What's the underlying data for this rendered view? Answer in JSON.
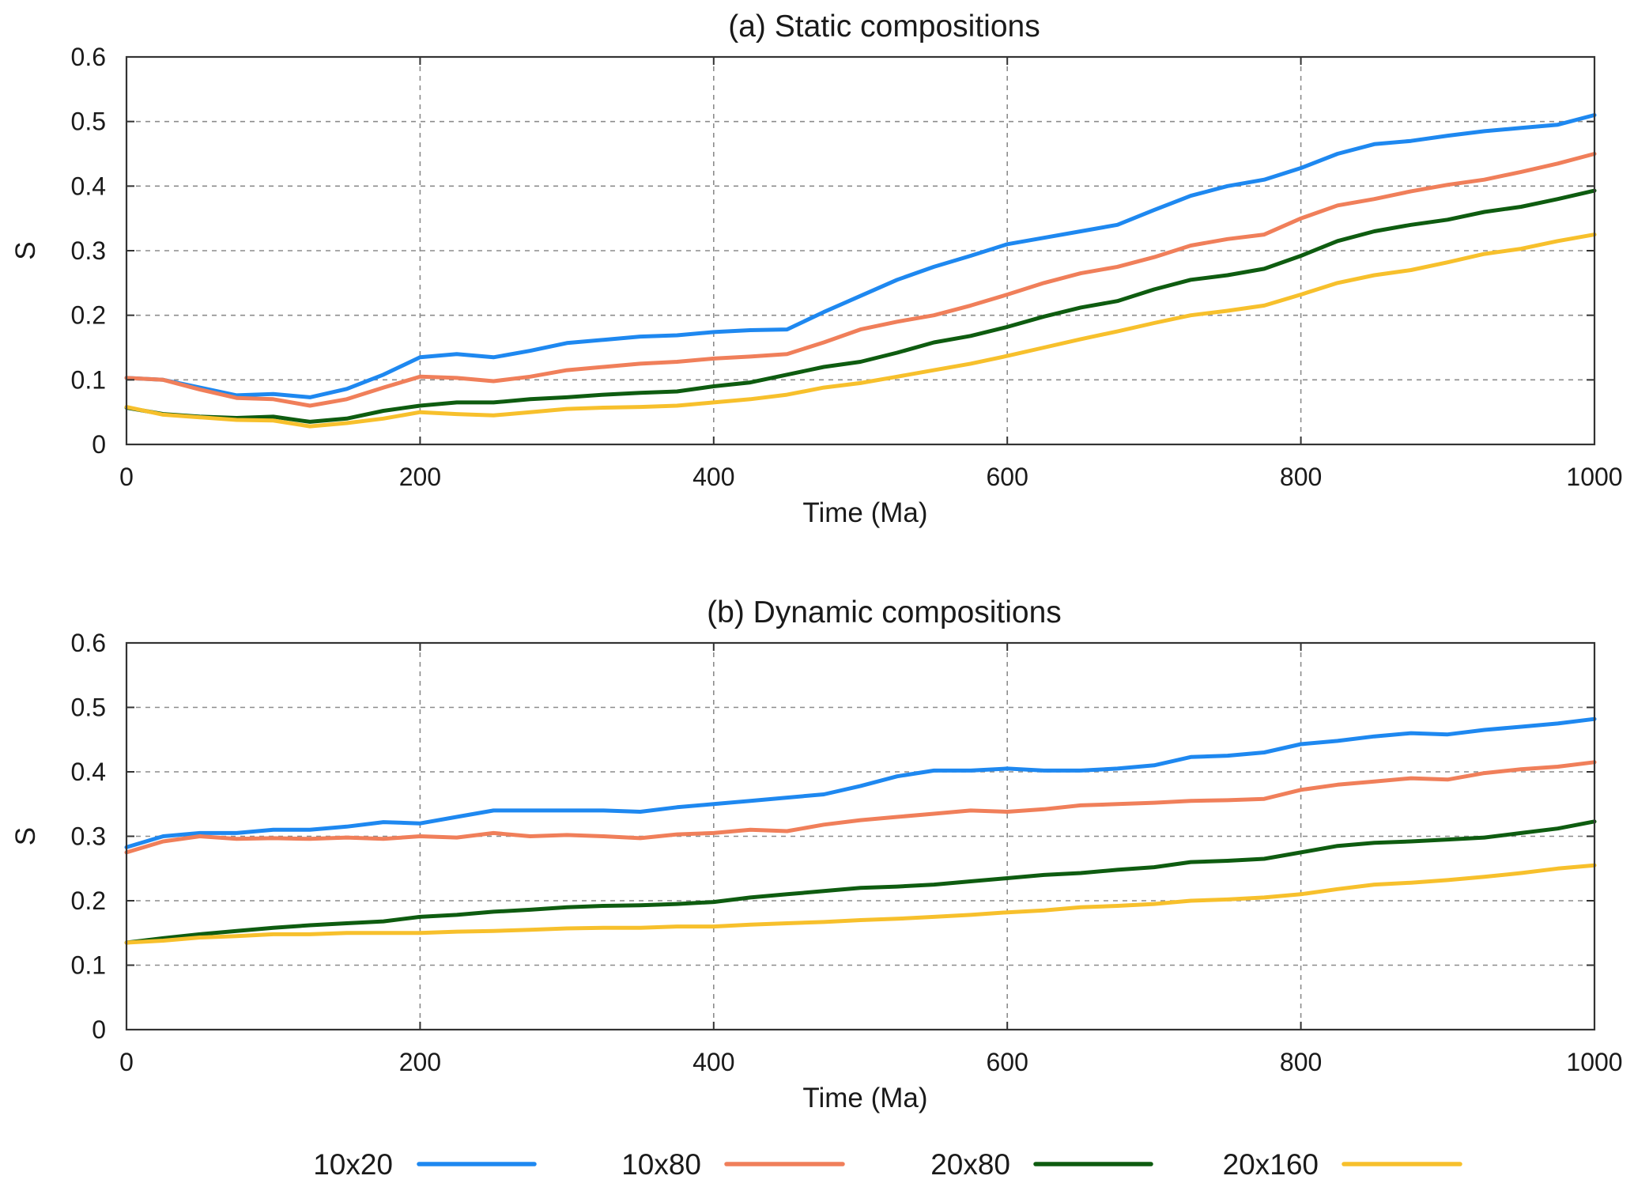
{
  "legend": {
    "position": "bottom",
    "items": [
      {
        "label": "10x20",
        "color": "#1e88f0"
      },
      {
        "label": "10x80",
        "color": "#f07f5a"
      },
      {
        "label": "20x80",
        "color": "#0e5c10"
      },
      {
        "label": "20x160",
        "color": "#f7c02c"
      }
    ]
  },
  "chart_data": [
    {
      "type": "line",
      "title": "(a) Static compositions",
      "xlabel": "Time (Ma)",
      "ylabel": "S",
      "xlim": [
        0,
        1000
      ],
      "ylim": [
        0,
        0.6
      ],
      "xticks": [
        0,
        200,
        400,
        600,
        800,
        1000
      ],
      "yticks": [
        0,
        0.1,
        0.2,
        0.3,
        0.4,
        0.5,
        0.6
      ],
      "grid": true,
      "series": [
        {
          "name": "10x20",
          "color": "#1e88f0",
          "x": [
            0,
            25,
            50,
            75,
            100,
            125,
            150,
            175,
            200,
            225,
            250,
            275,
            300,
            325,
            350,
            375,
            400,
            425,
            450,
            475,
            500,
            525,
            550,
            575,
            600,
            625,
            650,
            675,
            700,
            725,
            750,
            775,
            800,
            825,
            850,
            875,
            900,
            925,
            950,
            975,
            1000
          ],
          "y": [
            0.103,
            0.1,
            0.088,
            0.076,
            0.078,
            0.073,
            0.086,
            0.108,
            0.135,
            0.14,
            0.135,
            0.145,
            0.157,
            0.162,
            0.167,
            0.169,
            0.174,
            0.177,
            0.178,
            0.205,
            0.23,
            0.255,
            0.275,
            0.292,
            0.31,
            0.32,
            0.33,
            0.34,
            0.363,
            0.385,
            0.4,
            0.41,
            0.428,
            0.45,
            0.465,
            0.47,
            0.478,
            0.485,
            0.49,
            0.495,
            0.51
          ]
        },
        {
          "name": "10x80",
          "color": "#f07f5a",
          "x": [
            0,
            25,
            50,
            75,
            100,
            125,
            150,
            175,
            200,
            225,
            250,
            275,
            300,
            325,
            350,
            375,
            400,
            425,
            450,
            475,
            500,
            525,
            550,
            575,
            600,
            625,
            650,
            675,
            700,
            725,
            750,
            775,
            800,
            825,
            850,
            875,
            900,
            925,
            950,
            975,
            1000
          ],
          "y": [
            0.103,
            0.1,
            0.085,
            0.072,
            0.07,
            0.06,
            0.07,
            0.088,
            0.105,
            0.103,
            0.098,
            0.105,
            0.115,
            0.12,
            0.125,
            0.128,
            0.133,
            0.136,
            0.14,
            0.158,
            0.178,
            0.19,
            0.2,
            0.215,
            0.232,
            0.25,
            0.265,
            0.275,
            0.29,
            0.308,
            0.318,
            0.325,
            0.35,
            0.37,
            0.38,
            0.392,
            0.402,
            0.41,
            0.422,
            0.435,
            0.45
          ]
        },
        {
          "name": "20x80",
          "color": "#0e5c10",
          "x": [
            0,
            25,
            50,
            75,
            100,
            125,
            150,
            175,
            200,
            225,
            250,
            275,
            300,
            325,
            350,
            375,
            400,
            425,
            450,
            475,
            500,
            525,
            550,
            575,
            600,
            625,
            650,
            675,
            700,
            725,
            750,
            775,
            800,
            825,
            850,
            875,
            900,
            925,
            950,
            975,
            1000
          ],
          "y": [
            0.057,
            0.047,
            0.043,
            0.041,
            0.043,
            0.035,
            0.04,
            0.052,
            0.06,
            0.065,
            0.065,
            0.07,
            0.073,
            0.077,
            0.08,
            0.082,
            0.09,
            0.096,
            0.108,
            0.12,
            0.128,
            0.142,
            0.158,
            0.168,
            0.182,
            0.198,
            0.212,
            0.222,
            0.24,
            0.255,
            0.262,
            0.272,
            0.292,
            0.315,
            0.33,
            0.34,
            0.348,
            0.36,
            0.368,
            0.38,
            0.393
          ]
        },
        {
          "name": "20x160",
          "color": "#f7c02c",
          "x": [
            0,
            25,
            50,
            75,
            100,
            125,
            150,
            175,
            200,
            225,
            250,
            275,
            300,
            325,
            350,
            375,
            400,
            425,
            450,
            475,
            500,
            525,
            550,
            575,
            600,
            625,
            650,
            675,
            700,
            725,
            750,
            775,
            800,
            825,
            850,
            875,
            900,
            925,
            950,
            975,
            1000
          ],
          "y": [
            0.058,
            0.046,
            0.042,
            0.038,
            0.037,
            0.028,
            0.033,
            0.04,
            0.05,
            0.047,
            0.045,
            0.05,
            0.055,
            0.057,
            0.058,
            0.06,
            0.065,
            0.07,
            0.077,
            0.088,
            0.095,
            0.105,
            0.115,
            0.125,
            0.137,
            0.15,
            0.163,
            0.175,
            0.188,
            0.2,
            0.207,
            0.215,
            0.232,
            0.25,
            0.262,
            0.27,
            0.282,
            0.295,
            0.303,
            0.315,
            0.325
          ]
        }
      ]
    },
    {
      "type": "line",
      "title": "(b) Dynamic compositions",
      "xlabel": "Time (Ma)",
      "ylabel": "S",
      "xlim": [
        0,
        1000
      ],
      "ylim": [
        0,
        0.6
      ],
      "xticks": [
        0,
        200,
        400,
        600,
        800,
        1000
      ],
      "yticks": [
        0,
        0.1,
        0.2,
        0.3,
        0.4,
        0.5,
        0.6
      ],
      "grid": true,
      "series": [
        {
          "name": "10x20",
          "color": "#1e88f0",
          "x": [
            0,
            25,
            50,
            75,
            100,
            125,
            150,
            175,
            200,
            225,
            250,
            275,
            300,
            325,
            350,
            375,
            400,
            425,
            450,
            475,
            500,
            525,
            550,
            575,
            600,
            625,
            650,
            675,
            700,
            725,
            750,
            775,
            800,
            825,
            850,
            875,
            900,
            925,
            950,
            975,
            1000
          ],
          "y": [
            0.283,
            0.3,
            0.305,
            0.305,
            0.31,
            0.31,
            0.315,
            0.322,
            0.32,
            0.33,
            0.34,
            0.34,
            0.34,
            0.34,
            0.338,
            0.345,
            0.35,
            0.355,
            0.36,
            0.365,
            0.378,
            0.393,
            0.402,
            0.402,
            0.405,
            0.402,
            0.402,
            0.405,
            0.41,
            0.423,
            0.425,
            0.43,
            0.443,
            0.448,
            0.455,
            0.46,
            0.458,
            0.465,
            0.47,
            0.475,
            0.482
          ]
        },
        {
          "name": "10x80",
          "color": "#f07f5a",
          "x": [
            0,
            25,
            50,
            75,
            100,
            125,
            150,
            175,
            200,
            225,
            250,
            275,
            300,
            325,
            350,
            375,
            400,
            425,
            450,
            475,
            500,
            525,
            550,
            575,
            600,
            625,
            650,
            675,
            700,
            725,
            750,
            775,
            800,
            825,
            850,
            875,
            900,
            925,
            950,
            975,
            1000
          ],
          "y": [
            0.275,
            0.292,
            0.3,
            0.296,
            0.297,
            0.296,
            0.298,
            0.296,
            0.3,
            0.298,
            0.305,
            0.3,
            0.302,
            0.3,
            0.297,
            0.303,
            0.305,
            0.31,
            0.308,
            0.318,
            0.325,
            0.33,
            0.335,
            0.34,
            0.338,
            0.342,
            0.348,
            0.35,
            0.352,
            0.355,
            0.356,
            0.358,
            0.372,
            0.38,
            0.385,
            0.39,
            0.388,
            0.398,
            0.404,
            0.408,
            0.415
          ]
        },
        {
          "name": "20x80",
          "color": "#0e5c10",
          "x": [
            0,
            25,
            50,
            75,
            100,
            125,
            150,
            175,
            200,
            225,
            250,
            275,
            300,
            325,
            350,
            375,
            400,
            425,
            450,
            475,
            500,
            525,
            550,
            575,
            600,
            625,
            650,
            675,
            700,
            725,
            750,
            775,
            800,
            825,
            850,
            875,
            900,
            925,
            950,
            975,
            1000
          ],
          "y": [
            0.135,
            0.142,
            0.148,
            0.153,
            0.158,
            0.162,
            0.165,
            0.168,
            0.175,
            0.178,
            0.183,
            0.186,
            0.19,
            0.192,
            0.193,
            0.195,
            0.198,
            0.205,
            0.21,
            0.215,
            0.22,
            0.222,
            0.225,
            0.23,
            0.235,
            0.24,
            0.243,
            0.248,
            0.252,
            0.26,
            0.262,
            0.265,
            0.275,
            0.285,
            0.29,
            0.292,
            0.295,
            0.298,
            0.305,
            0.312,
            0.323
          ]
        },
        {
          "name": "20x160",
          "color": "#f7c02c",
          "x": [
            0,
            25,
            50,
            75,
            100,
            125,
            150,
            175,
            200,
            225,
            250,
            275,
            300,
            325,
            350,
            375,
            400,
            425,
            450,
            475,
            500,
            525,
            550,
            575,
            600,
            625,
            650,
            675,
            700,
            725,
            750,
            775,
            800,
            825,
            850,
            875,
            900,
            925,
            950,
            975,
            1000
          ],
          "y": [
            0.135,
            0.138,
            0.143,
            0.145,
            0.148,
            0.148,
            0.15,
            0.15,
            0.15,
            0.152,
            0.153,
            0.155,
            0.157,
            0.158,
            0.158,
            0.16,
            0.16,
            0.163,
            0.165,
            0.167,
            0.17,
            0.172,
            0.175,
            0.178,
            0.182,
            0.185,
            0.19,
            0.192,
            0.195,
            0.2,
            0.202,
            0.205,
            0.21,
            0.218,
            0.225,
            0.228,
            0.232,
            0.237,
            0.243,
            0.25,
            0.255
          ]
        }
      ]
    }
  ]
}
